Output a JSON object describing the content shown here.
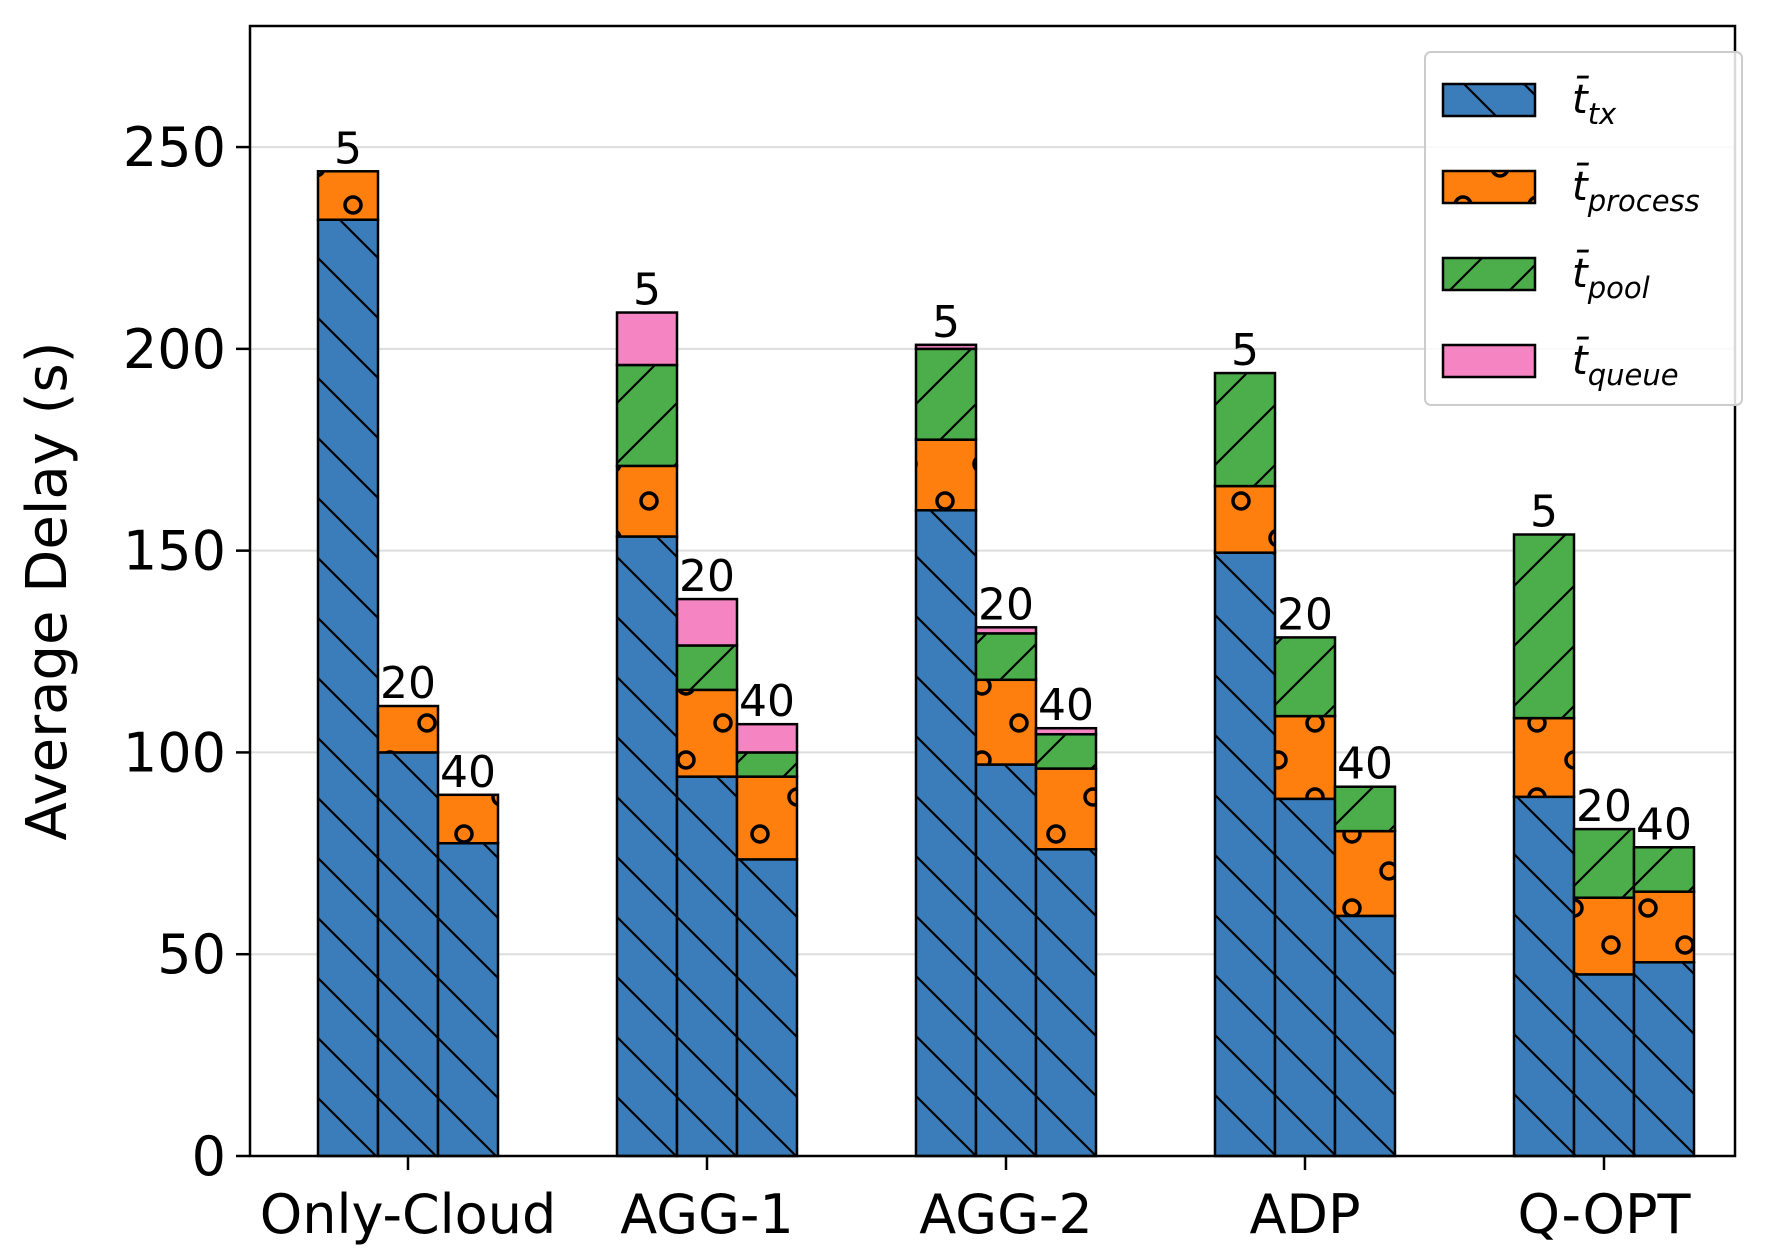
{
  "chart_data": {
    "type": "bar",
    "stacked": true,
    "title": "",
    "xlabel": "",
    "ylabel": "Average Delay (s)",
    "ylim": [
      0,
      280
    ],
    "yticks": [
      0,
      50,
      100,
      150,
      200,
      250
    ],
    "grid": "horizontal",
    "legend_position": "top-right",
    "categories": [
      "Only-Cloud",
      "AGG-1",
      "AGG-2",
      "ADP",
      "Q-OPT"
    ],
    "sub_bar_labels": [
      "5",
      "20",
      "40"
    ],
    "colors": {
      "tx": "#3a7dba",
      "process": "#ff7f0e",
      "pool": "#4cae4a",
      "queue": "#f484c2"
    },
    "series": [
      {
        "key": "tx",
        "name": "t̄",
        "subscript": "tx",
        "values": [
          [
            232,
            100,
            77.5
          ],
          [
            153.5,
            94,
            73.5
          ],
          [
            160,
            97,
            76
          ],
          [
            149.5,
            88.5,
            59.5
          ],
          [
            89,
            45,
            48
          ]
        ]
      },
      {
        "key": "process",
        "name": "t̄",
        "subscript": "process",
        "values": [
          [
            12,
            11.5,
            12
          ],
          [
            17.5,
            21.5,
            20.5
          ],
          [
            17.5,
            21,
            20
          ],
          [
            16.5,
            20.5,
            21
          ],
          [
            19.5,
            19,
            17.5
          ]
        ]
      },
      {
        "key": "pool",
        "name": "t̄",
        "subscript": "pool",
        "values": [
          [
            0,
            0,
            0
          ],
          [
            25,
            11,
            6
          ],
          [
            22.5,
            11.5,
            8.5
          ],
          [
            28,
            19.5,
            11
          ],
          [
            45.5,
            17,
            11
          ]
        ]
      },
      {
        "key": "queue",
        "name": "t̄",
        "subscript": "queue",
        "values": [
          [
            0,
            0,
            0
          ],
          [
            13,
            11.5,
            7
          ],
          [
            1,
            1.5,
            1.5
          ],
          [
            0,
            0,
            0
          ],
          [
            0,
            0,
            0
          ]
        ]
      }
    ]
  }
}
